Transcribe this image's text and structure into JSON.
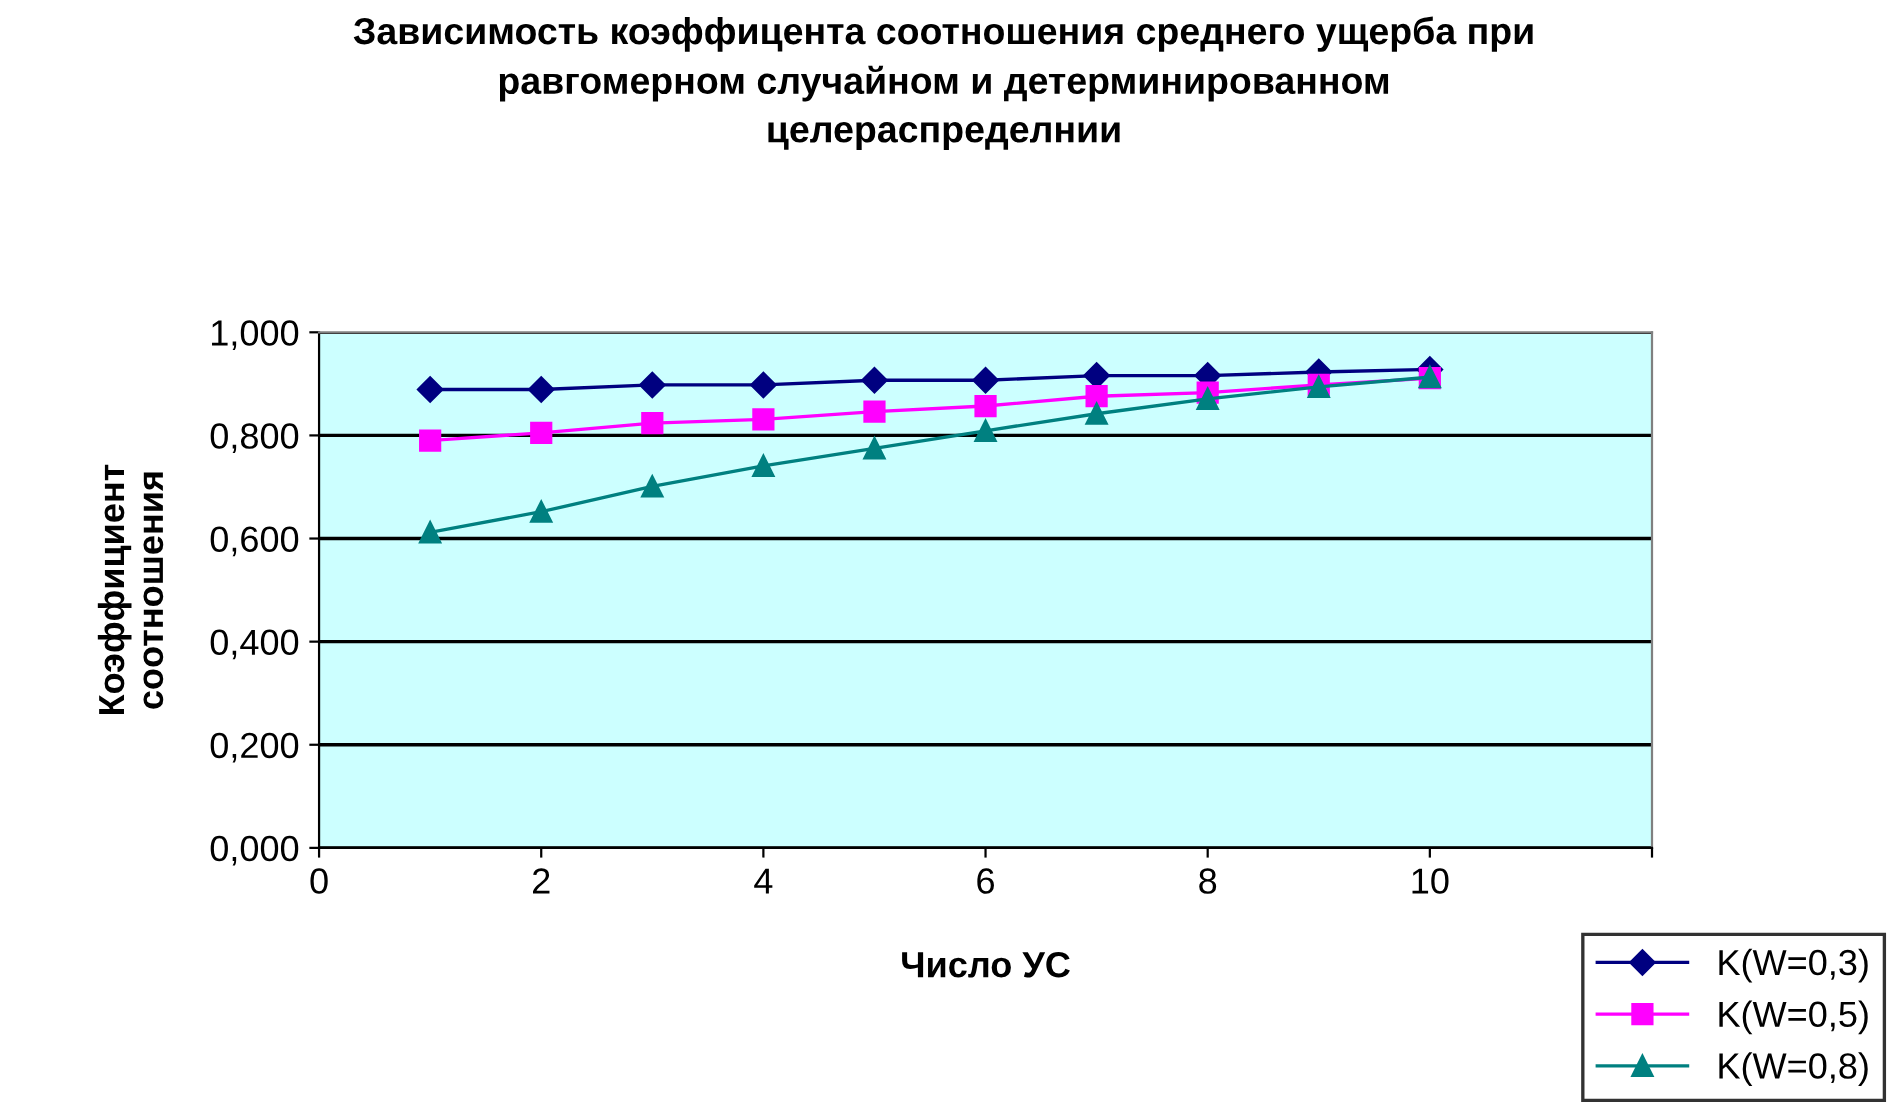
{
  "chart_data": {
    "type": "line",
    "title": "Зависимость коэффицента соотношения среднего ущерба при\nравгомерном случайном и детерминированном\nцелераспределнии",
    "xlabel": "Число УС",
    "ylabel": "Коэффициент\nсоотношения",
    "x": [
      1,
      2,
      3,
      4,
      5,
      6,
      7,
      8,
      9,
      10
    ],
    "series": [
      {
        "name": "K(W=0,3)",
        "color": "#000080",
        "marker": "diamond",
        "values": [
          0.889,
          0.889,
          0.898,
          0.898,
          0.907,
          0.907,
          0.916,
          0.916,
          0.923,
          0.928
        ]
      },
      {
        "name": "K(W=0,5)",
        "color": "#ff00ff",
        "marker": "square",
        "values": [
          0.79,
          0.805,
          0.824,
          0.831,
          0.846,
          0.857,
          0.876,
          0.883,
          0.898,
          0.911
        ]
      },
      {
        "name": "K(W=0,8)",
        "color": "#008080",
        "marker": "triangle",
        "values": [
          0.612,
          0.652,
          0.701,
          0.741,
          0.775,
          0.809,
          0.842,
          0.871,
          0.894,
          0.913
        ]
      }
    ],
    "xlim": [
      0,
      12
    ],
    "xticks": [
      {
        "value": 0,
        "label": "0"
      },
      {
        "value": 2,
        "label": "2"
      },
      {
        "value": 4,
        "label": "4"
      },
      {
        "value": 6,
        "label": "6"
      },
      {
        "value": 8,
        "label": "8"
      },
      {
        "value": 10,
        "label": "10"
      },
      {
        "value": 12,
        "label": null
      }
    ],
    "ylim": [
      0,
      1
    ],
    "yticks": [
      {
        "value": 0,
        "label": "0,000"
      },
      {
        "value": 0.2,
        "label": "0,200"
      },
      {
        "value": 0.4,
        "label": "0,400"
      },
      {
        "value": 0.6,
        "label": "0,600"
      },
      {
        "value": 0.8,
        "label": "0,800"
      },
      {
        "value": 1,
        "label": "1,000"
      }
    ],
    "grid": "y",
    "legend": "bottom right"
  }
}
